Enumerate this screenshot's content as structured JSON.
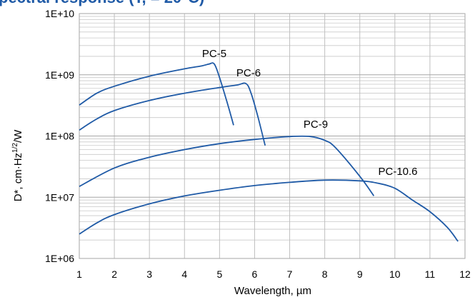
{
  "header": {
    "title": "pectral response (T, = 20°C)"
  },
  "chart_data": {
    "type": "line",
    "xlabel": "Wavelength, µm",
    "ylabel_main": "D*, cm·Hz",
    "ylabel_sup": "1/2",
    "ylabel_end": "/W",
    "xlim": [
      1,
      12
    ],
    "ylim": [
      1000000,
      10000000000
    ],
    "yscale": "log",
    "x_ticks": [
      "1",
      "2",
      "3",
      "4",
      "5",
      "6",
      "7",
      "8",
      "9",
      "10",
      "11",
      "12"
    ],
    "y_ticks": [
      "1E+06",
      "1E+07",
      "1E+08",
      "1E+09",
      "1E+10"
    ],
    "y_tick_values": [
      1000000,
      10000000,
      100000000,
      1000000000,
      10000000000
    ],
    "grid": true,
    "line_color": "#1f5aa6",
    "series": [
      {
        "name": "PC-5",
        "x": [
          1.0,
          1.5,
          2.0,
          3.0,
          4.0,
          4.5,
          4.7,
          4.85,
          5.0,
          5.2,
          5.4
        ],
        "y": [
          320000000,
          500000000,
          650000000,
          950000000,
          1250000000,
          1400000000,
          1500000000,
          1500000000,
          900000000,
          380000000,
          150000000
        ]
      },
      {
        "name": "PC-6",
        "x": [
          1.0,
          1.5,
          2.0,
          3.0,
          4.0,
          5.0,
          5.5,
          5.75,
          5.9,
          6.1,
          6.3
        ],
        "y": [
          125000000,
          190000000,
          260000000,
          380000000,
          500000000,
          620000000,
          680000000,
          720000000,
          500000000,
          200000000,
          70000000
        ]
      },
      {
        "name": "PC-9",
        "x": [
          1.0,
          2.0,
          3.0,
          4.0,
          5.0,
          6.0,
          7.0,
          7.6,
          8.0,
          8.3,
          9.0,
          9.4
        ],
        "y": [
          15000000,
          30000000,
          45000000,
          60000000,
          75000000,
          88000000,
          98000000,
          98000000,
          85000000,
          65000000,
          22000000,
          10500000
        ]
      },
      {
        "name": "PC-10.6",
        "x": [
          1.0,
          1.5,
          2.0,
          3.0,
          4.0,
          5.0,
          6.0,
          7.0,
          8.0,
          9.0,
          9.5,
          10.0,
          10.5,
          11.0,
          11.5,
          11.8
        ],
        "y": [
          2500000,
          3800000,
          5200000,
          7800000,
          10500000,
          13000000,
          15500000,
          17500000,
          19000000,
          18500000,
          17000000,
          14000000,
          9000000,
          5800000,
          3200000,
          1900000
        ]
      }
    ],
    "annotations": [
      "PC-5",
      "PC-6",
      "PC-9",
      "PC-10.6"
    ]
  }
}
